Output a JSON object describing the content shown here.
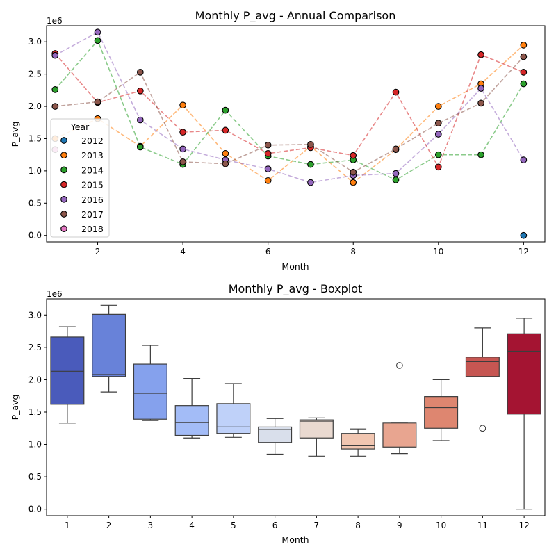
{
  "chart_data": [
    {
      "type": "line",
      "title": "Monthly P_avg - Annual Comparison",
      "xlabel": "Month",
      "ylabel": "P_avg",
      "offset_text": "1e6",
      "xlim": [
        0.8,
        12.5
      ],
      "ylim": [
        -100000,
        3250000
      ],
      "xticks": [
        2,
        4,
        6,
        8,
        10,
        12
      ],
      "yticks": [
        0,
        500000,
        1000000,
        1500000,
        2000000,
        2500000,
        3000000
      ],
      "ytick_labels": [
        "0.0",
        "0.5",
        "1.0",
        "1.5",
        "2.0",
        "2.5",
        "3.0"
      ],
      "grid": false,
      "legend": {
        "title": "Year",
        "placement": "center-left"
      },
      "series": [
        {
          "name": "2012",
          "color": "#1f77b4",
          "x": [
            12
          ],
          "y": [
            0
          ]
        },
        {
          "name": "2013",
          "color": "#ff7f0e",
          "x": [
            1,
            2,
            3,
            4,
            5,
            6,
            7,
            8,
            9,
            10,
            11,
            12
          ],
          "y": [
            1500000,
            1810000,
            1380000,
            2020000,
            1270000,
            850000,
            1380000,
            820000,
            1330000,
            2000000,
            2350000,
            2950000
          ]
        },
        {
          "name": "2014",
          "color": "#2ca02c",
          "x": [
            1,
            2,
            3,
            4,
            5,
            6,
            7,
            8,
            9,
            10,
            11,
            12
          ],
          "y": [
            2260000,
            3020000,
            1370000,
            1100000,
            1940000,
            1230000,
            1100000,
            1170000,
            860000,
            1250000,
            1250000,
            2350000
          ]
        },
        {
          "name": "2015",
          "color": "#d62728",
          "x": [
            1,
            2,
            3,
            4,
            5,
            6,
            7,
            8,
            9,
            10,
            11,
            12
          ],
          "y": [
            2820000,
            2060000,
            2240000,
            1600000,
            1630000,
            1270000,
            1360000,
            1240000,
            2220000,
            1060000,
            2800000,
            2530000
          ]
        },
        {
          "name": "2016",
          "color": "#9467bd",
          "x": [
            1,
            2,
            3,
            4,
            5,
            6,
            7,
            8,
            9,
            10,
            11,
            12
          ],
          "y": [
            2790000,
            3150000,
            1790000,
            1340000,
            1170000,
            1030000,
            820000,
            930000,
            960000,
            1570000,
            2280000,
            1170000
          ]
        },
        {
          "name": "2017",
          "color": "#8c564b",
          "x": [
            1,
            2,
            3,
            4,
            5,
            6,
            7,
            8,
            9,
            10,
            11,
            12
          ],
          "y": [
            2000000,
            2070000,
            2530000,
            1140000,
            1110000,
            1400000,
            1410000,
            980000,
            1340000,
            1740000,
            2050000,
            2770000
          ]
        },
        {
          "name": "2018",
          "color": "#e377c2",
          "x": [
            1
          ],
          "y": [
            1330000
          ]
        }
      ]
    },
    {
      "type": "box",
      "title": "Monthly P_avg - Boxplot",
      "xlabel": "Month",
      "ylabel": "P_avg",
      "offset_text": "1e6",
      "categories": [
        "1",
        "2",
        "3",
        "4",
        "5",
        "6",
        "7",
        "8",
        "9",
        "10",
        "11",
        "12"
      ],
      "ylim": [
        -100000,
        3250000
      ],
      "yticks": [
        0,
        500000,
        1000000,
        1500000,
        2000000,
        2500000,
        3000000
      ],
      "ytick_labels": [
        "0.0",
        "0.5",
        "1.0",
        "1.5",
        "2.0",
        "2.5",
        "3.0"
      ],
      "grid": false,
      "boxes": [
        {
          "month": "1",
          "color": "#4a5bbb",
          "whisker_low": 1330000,
          "q1": 1620000,
          "median": 2130000,
          "q3": 2660000,
          "whisker_high": 2820000,
          "outliers": []
        },
        {
          "month": "2",
          "color": "#6882d9",
          "whisker_low": 1810000,
          "q1": 2050000,
          "median": 2080000,
          "q3": 3010000,
          "whisker_high": 3150000,
          "outliers": []
        },
        {
          "month": "3",
          "color": "#85a1ed",
          "whisker_low": 1370000,
          "q1": 1390000,
          "median": 1790000,
          "q3": 2240000,
          "whisker_high": 2530000,
          "outliers": []
        },
        {
          "month": "4",
          "color": "#a3bcf7",
          "whisker_low": 1100000,
          "q1": 1140000,
          "median": 1340000,
          "q3": 1600000,
          "whisker_high": 2020000,
          "outliers": []
        },
        {
          "month": "5",
          "color": "#bfd1f9",
          "whisker_low": 1110000,
          "q1": 1170000,
          "median": 1270000,
          "q3": 1630000,
          "whisker_high": 1940000,
          "outliers": []
        },
        {
          "month": "6",
          "color": "#d9dfeb",
          "whisker_low": 850000,
          "q1": 1030000,
          "median": 1230000,
          "q3": 1270000,
          "whisker_high": 1400000,
          "outliers": []
        },
        {
          "month": "7",
          "color": "#e9d9d0",
          "whisker_low": 820000,
          "q1": 1100000,
          "median": 1360000,
          "q3": 1380000,
          "whisker_high": 1410000,
          "outliers": []
        },
        {
          "month": "8",
          "color": "#f1c6b1",
          "whisker_low": 820000,
          "q1": 930000,
          "median": 980000,
          "q3": 1170000,
          "whisker_high": 1240000,
          "outliers": []
        },
        {
          "month": "9",
          "color": "#e8a590",
          "whisker_low": 860000,
          "q1": 960000,
          "median": 1330000,
          "q3": 1340000,
          "whisker_high": 1340000,
          "outliers": [
            2220000
          ]
        },
        {
          "month": "10",
          "color": "#de8670",
          "whisker_low": 1060000,
          "q1": 1250000,
          "median": 1570000,
          "q3": 1740000,
          "whisker_high": 2000000,
          "outliers": []
        },
        {
          "month": "11",
          "color": "#c65652",
          "whisker_low": 2050000,
          "q1": 2050000,
          "median": 2280000,
          "q3": 2350000,
          "whisker_high": 2800000,
          "outliers": [
            1250000
          ]
        },
        {
          "month": "12",
          "color": "#a41432",
          "whisker_low": 0,
          "q1": 1470000,
          "median": 2440000,
          "q3": 2710000,
          "whisker_high": 2950000,
          "outliers": []
        }
      ]
    }
  ]
}
